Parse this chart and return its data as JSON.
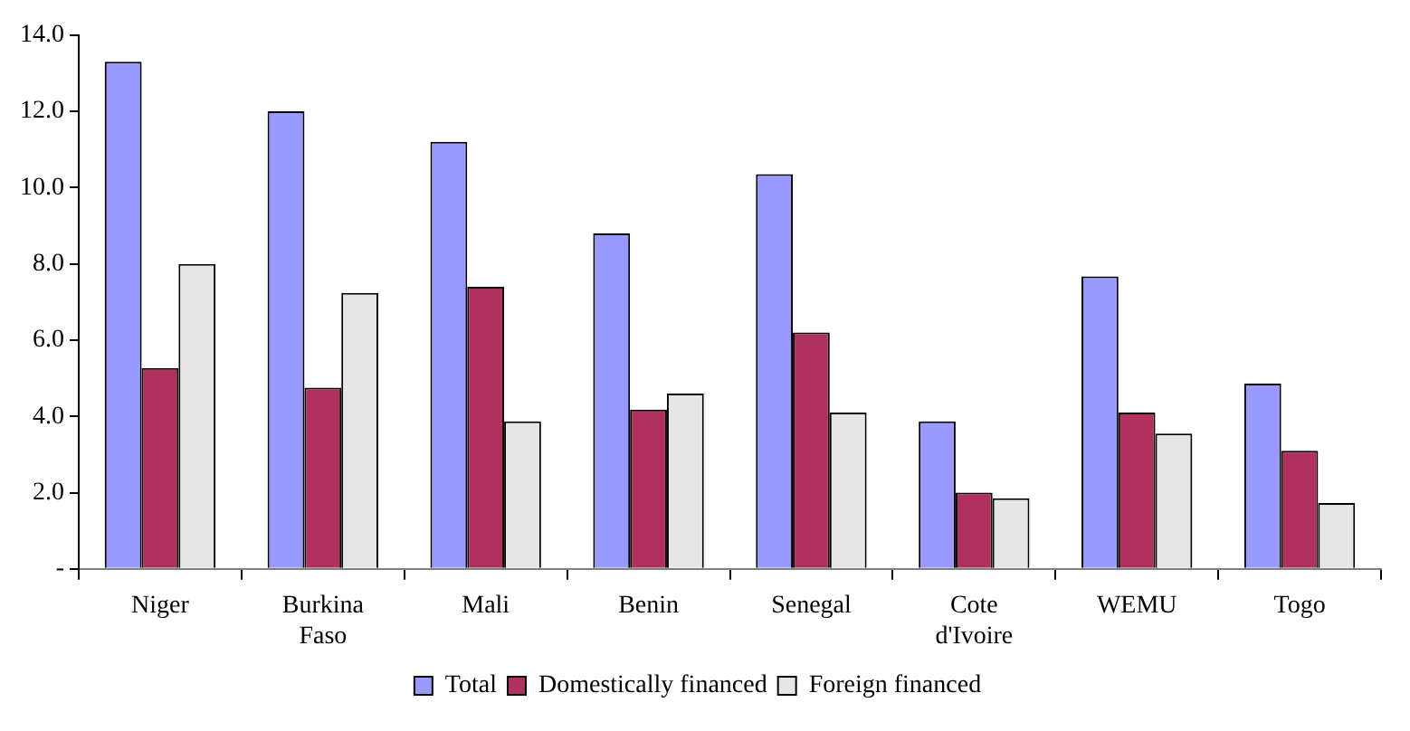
{
  "chart_data": {
    "type": "bar",
    "categories": [
      "Niger",
      "Burkina Faso",
      "Mali",
      "Benin",
      "Senegal",
      "Cote d'Ivoire",
      "WEMU",
      "Togo"
    ],
    "series": [
      {
        "name": "Total",
        "color": "#9999ff",
        "values": [
          13.3,
          12.0,
          11.2,
          8.8,
          10.35,
          3.87,
          7.67,
          4.86
        ]
      },
      {
        "name": "Domestically financed",
        "color": "#b03060",
        "values": [
          5.27,
          4.75,
          7.4,
          4.18,
          6.2,
          2.0,
          4.1,
          3.1
        ]
      },
      {
        "name": "Foreign financed",
        "color": "#e6e6e6",
        "values": [
          8.0,
          7.24,
          3.87,
          4.6,
          4.1,
          1.85,
          3.55,
          1.73
        ]
      }
    ],
    "ylim": [
      0,
      14
    ],
    "yticks": [
      {
        "value": 0,
        "label": "-"
      },
      {
        "value": 2,
        "label": "2.0"
      },
      {
        "value": 4,
        "label": "4.0"
      },
      {
        "value": 6,
        "label": "6.0"
      },
      {
        "value": 8,
        "label": "8.0"
      },
      {
        "value": 10,
        "label": "10.0"
      },
      {
        "value": 12,
        "label": "12.0"
      },
      {
        "value": 14,
        "label": "14.0"
      }
    ],
    "grid": false,
    "legend": "bottom"
  }
}
